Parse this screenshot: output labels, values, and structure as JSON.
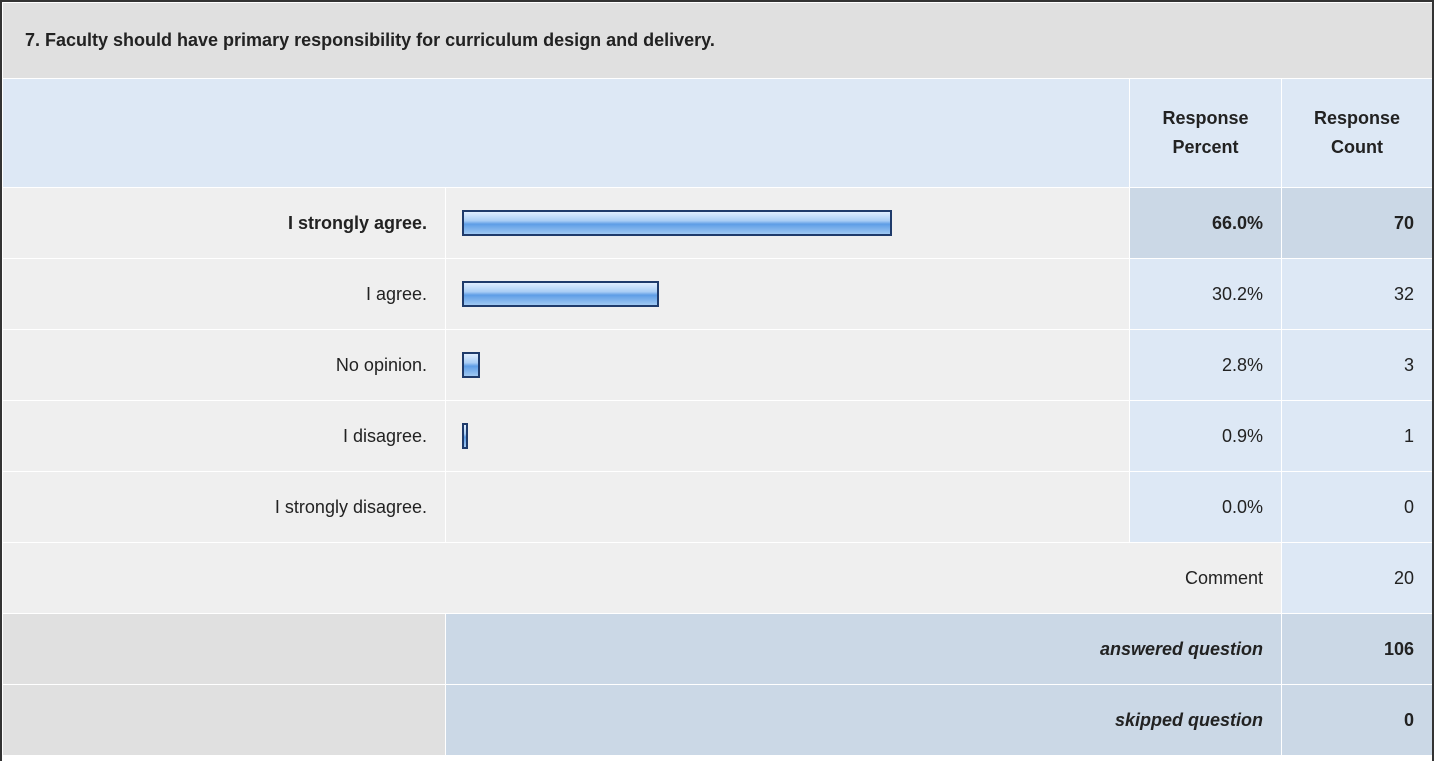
{
  "title": "7. Faculty should have primary responsibility for curriculum design and delivery.",
  "columns": [
    "Response Percent",
    "Response Count"
  ],
  "rows": [
    {
      "label": "I strongly agree.",
      "percent": 66.0,
      "percent_label": "66.0%",
      "count": 70
    },
    {
      "label": "I agree.",
      "percent": 30.2,
      "percent_label": "30.2%",
      "count": 32
    },
    {
      "label": "No opinion.",
      "percent": 2.8,
      "percent_label": "2.8%",
      "count": 3
    },
    {
      "label": "I disagree.",
      "percent": 0.9,
      "percent_label": "0.9%",
      "count": 1
    },
    {
      "label": "I strongly disagree.",
      "percent": 0.0,
      "percent_label": "0.0%",
      "count": 0
    }
  ],
  "comment": {
    "label": "Comment",
    "count": 20
  },
  "answered": {
    "label": "answered question",
    "count": 106
  },
  "skipped": {
    "label": "skipped question",
    "count": 0
  }
}
